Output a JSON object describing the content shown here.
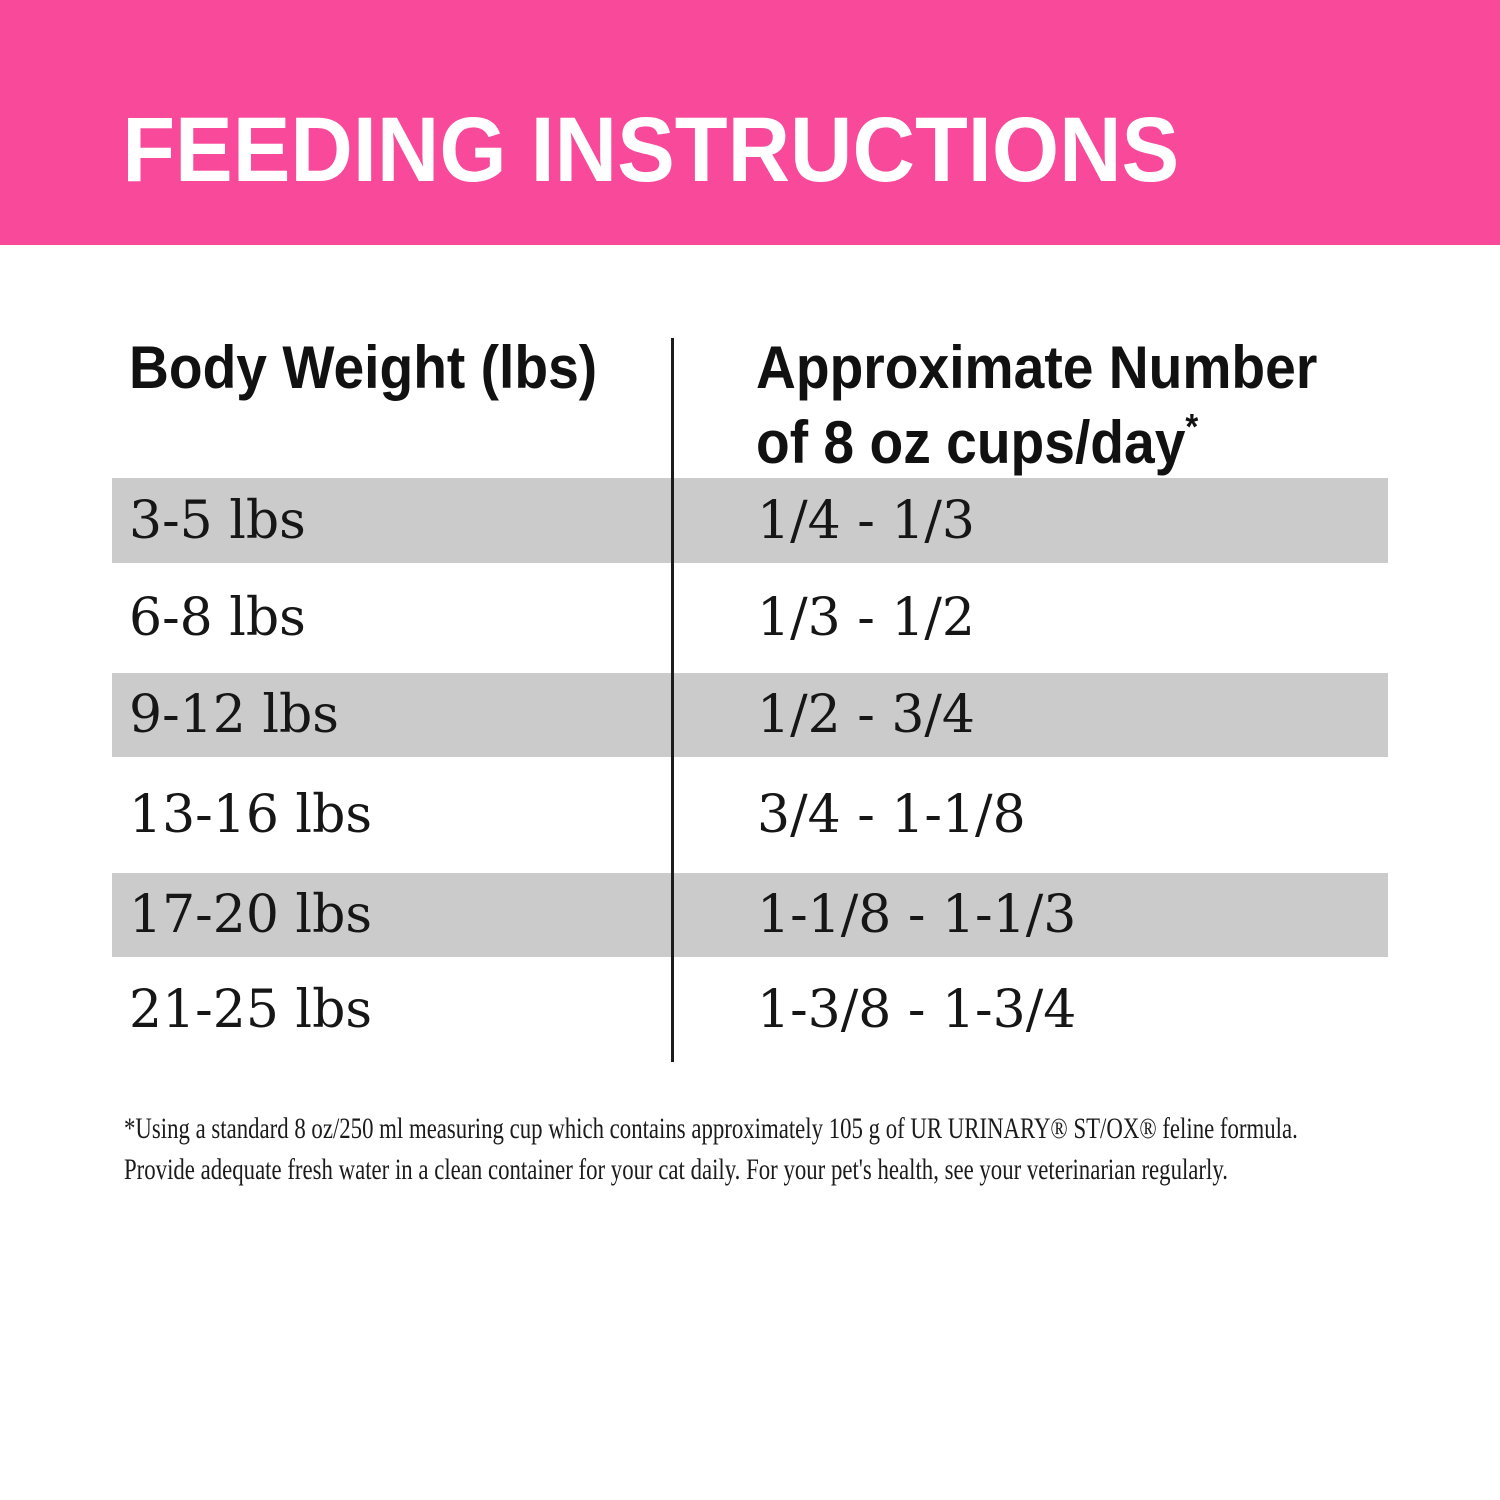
{
  "header": {
    "title": "FEEDING INSTRUCTIONS"
  },
  "table": {
    "col1_header": "Body Weight (lbs)",
    "col2_header_line1": "Approximate Number",
    "col2_header_line2": "of 8 oz cups/day",
    "col2_header_superscript": "*",
    "rows": [
      {
        "weight": "3-5 lbs",
        "cups": "1/4 - 1/3"
      },
      {
        "weight": "6-8 lbs",
        "cups": "1/3 - 1/2"
      },
      {
        "weight": "9-12 lbs",
        "cups": "1/2 - 3/4"
      },
      {
        "weight": "13-16 lbs",
        "cups": "3/4 - 1-1/8"
      },
      {
        "weight": "17-20 lbs",
        "cups": "1-1/8 - 1-1/3"
      },
      {
        "weight": "21-25 lbs",
        "cups": "1-3/8 - 1-3/4"
      }
    ]
  },
  "footnote": {
    "line1": "*Using a standard 8 oz/250 ml measuring cup which contains approximately 105 g of UR URINARY® ST/OX® feline formula.",
    "line2": "Provide adequate fresh water in a clean container for your cat daily. For your pet's health, see your veterinarian regularly."
  },
  "colors": {
    "banner_pink": "#F8499B",
    "row_stripe_gray": "#CBCBCB",
    "text_black": "#1B1B1B",
    "title_white": "#FFFFFF"
  }
}
